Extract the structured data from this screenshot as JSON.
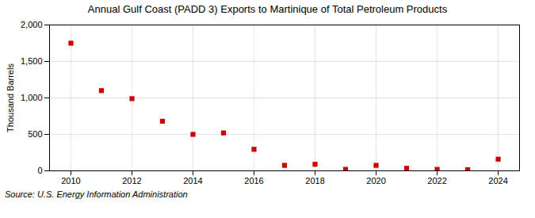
{
  "chart_data": {
    "type": "scatter",
    "title": "Annual Gulf Coast (PADD 3) Exports to Martinique of Total Petroleum Products",
    "ylabel": "Thousand Barrels",
    "annotations": [
      "Source: U.S. Energy Information Administration"
    ],
    "x": [
      2010,
      2011,
      2012,
      2013,
      2014,
      2015,
      2016,
      2017,
      2018,
      2019,
      2020,
      2021,
      2022,
      2023,
      2024
    ],
    "values": [
      1750,
      1100,
      990,
      680,
      500,
      520,
      295,
      75,
      90,
      20,
      75,
      35,
      20,
      15,
      160
    ],
    "color": "#cc0000",
    "marker": "square",
    "grid": true,
    "xlim": [
      2009.3,
      2024.7
    ],
    "xticks": [
      2010,
      2012,
      2014,
      2016,
      2018,
      2020,
      2022,
      2024
    ],
    "ylim": [
      0,
      2000
    ],
    "yticks": [
      0,
      500,
      {
        "value": 1000,
        "label": "1,000"
      },
      {
        "value": 1500,
        "label": "1,500"
      },
      {
        "value": 2000,
        "label": "2,000"
      }
    ]
  }
}
